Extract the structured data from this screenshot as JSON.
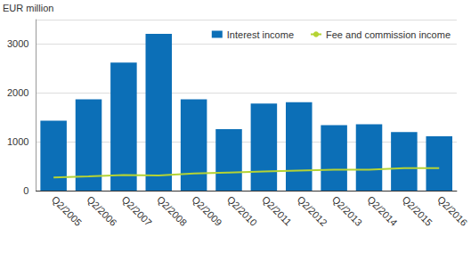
{
  "chart_data": {
    "type": "bar",
    "y_label": "EUR million",
    "categories": [
      "Q2/2005",
      "Q2/2006",
      "Q2/2007",
      "Q2/2008",
      "Q2/2009",
      "Q2/2010",
      "Q2/2011",
      "Q2/2012",
      "Q2/2013",
      "Q2/2014",
      "Q2/2015",
      "Q2/2016"
    ],
    "series": [
      {
        "name": "Interest income",
        "type": "bar",
        "color": "#0c6fb7",
        "values": [
          1430,
          1870,
          2620,
          3210,
          1870,
          1260,
          1780,
          1810,
          1340,
          1360,
          1200,
          1110
        ]
      },
      {
        "name": "Fee and commission income",
        "type": "line",
        "color": "#b5d334",
        "values": [
          270,
          290,
          320,
          310,
          350,
          370,
          390,
          410,
          430,
          430,
          460,
          460
        ]
      }
    ],
    "ylim": [
      0,
      3500
    ],
    "yticks": [
      0,
      1000,
      2000,
      3000
    ],
    "grid": true,
    "legend": "top-right"
  }
}
